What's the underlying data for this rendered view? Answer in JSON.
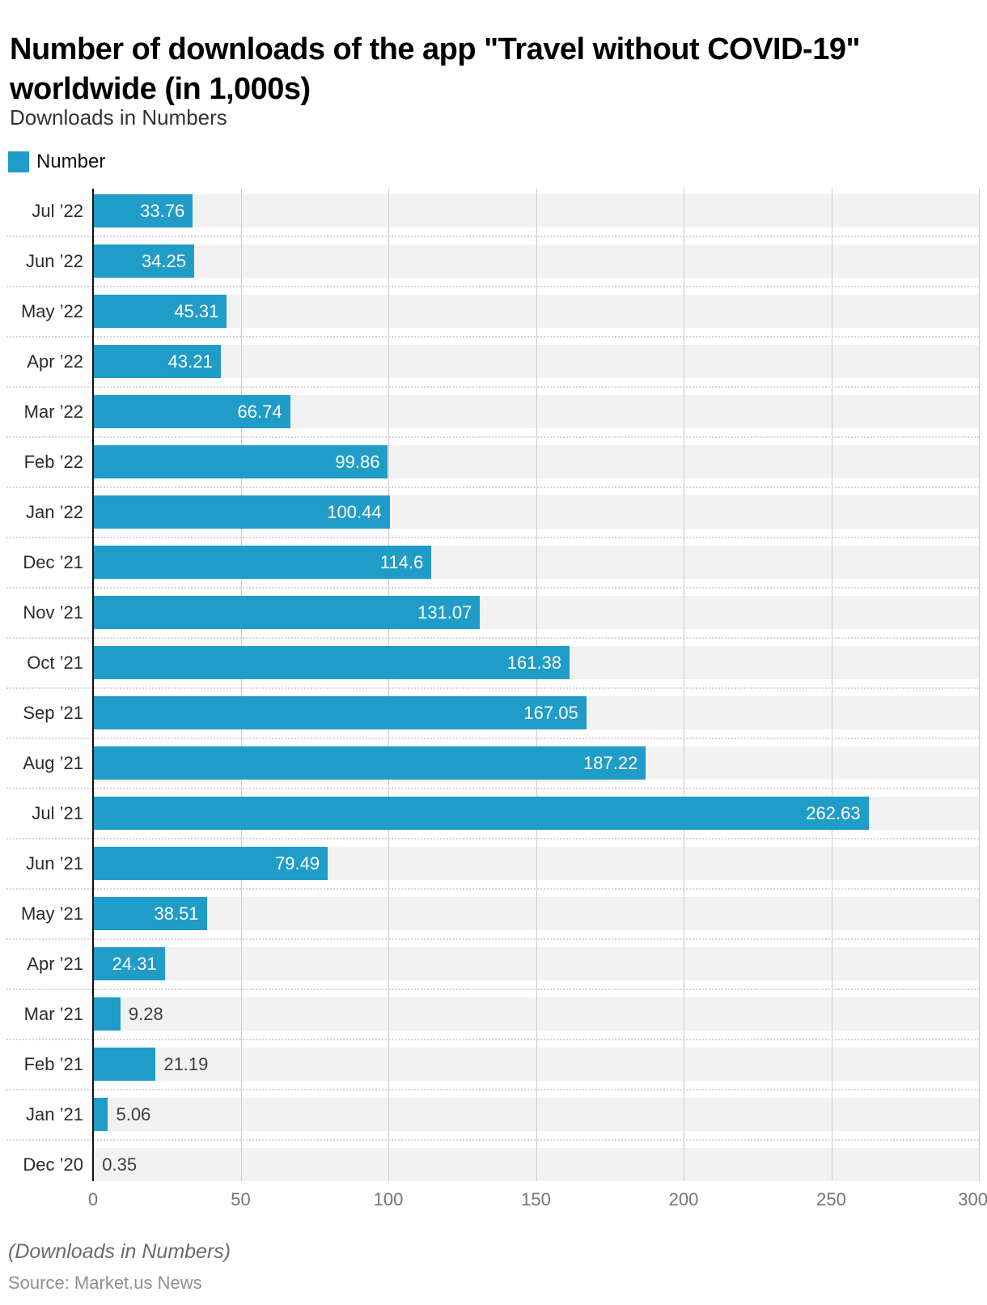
{
  "header": {
    "title": "Number of downloads of the app \"Travel without COVID-19\" worldwide (in 1,000s)",
    "title_line1": "Number of downloads of the app \"Travel without COVID-19\"",
    "title_line2": "worldwide (in 1,000s)",
    "subtitle": "Downloads in Numbers"
  },
  "legend": {
    "label": "Number",
    "swatch_color": "#209cc8"
  },
  "chart_data": {
    "type": "bar",
    "orientation": "horizontal",
    "title": "Number of downloads of the app \"Travel without COVID-19\" worldwide (in 1,000s)",
    "subtitle": "Downloads in Numbers",
    "series_name": "Number",
    "categories": [
      "Jul ’22",
      "Jun ’22",
      "May ’22",
      "Apr ’22",
      "Mar ’22",
      "Feb ’22",
      "Jan ’22",
      "Dec ’21",
      "Nov ’21",
      "Oct ’21",
      "Sep ’21",
      "Aug ’21",
      "Jul ’21",
      "Jun ’21",
      "May ’21",
      "Apr ’21",
      "Mar ’21",
      "Feb ’21",
      "Jan ’21",
      "Dec ’20"
    ],
    "values": [
      33.76,
      34.25,
      45.31,
      43.21,
      66.74,
      99.86,
      100.44,
      114.6,
      131.07,
      161.38,
      167.05,
      187.22,
      262.63,
      79.49,
      38.51,
      24.31,
      9.28,
      21.19,
      5.06,
      0.35
    ],
    "xlim": [
      0,
      300
    ],
    "x_ticks": [
      0,
      50,
      100,
      150,
      200,
      250,
      300
    ],
    "grid": "vertical",
    "legend_position": "top-left",
    "bar_color": "#209cc8",
    "band_color": "#f2f2f2",
    "gridline_color": "#cbcbcb",
    "axis_color": "#111111"
  },
  "footer": {
    "note": "(Downloads in Numbers)",
    "source": "Source: Market.us News"
  }
}
